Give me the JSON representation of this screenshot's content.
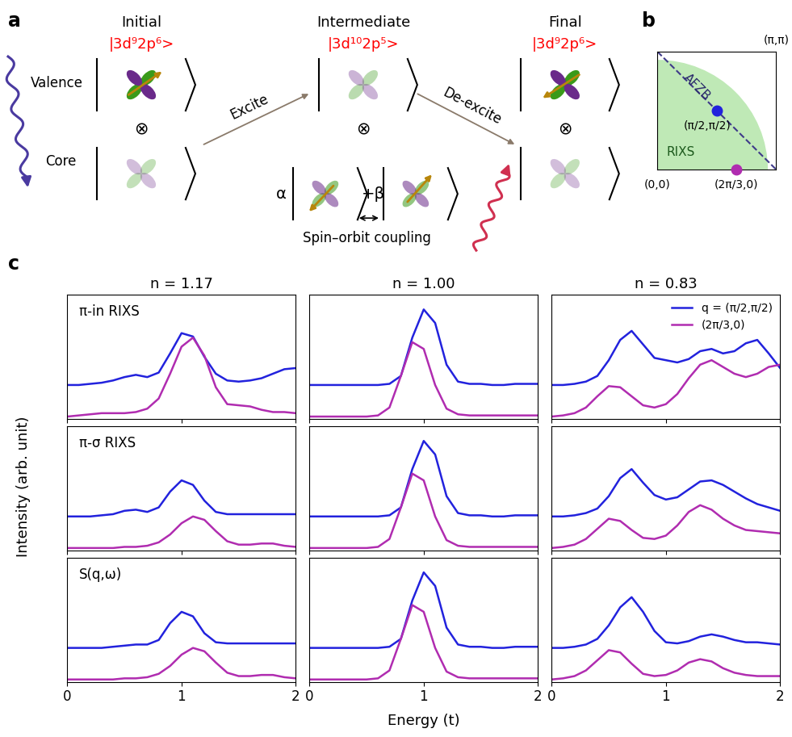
{
  "panel_labels": [
    "a",
    "b",
    "c"
  ],
  "diagram_a": {
    "stages": [
      "Initial",
      "Intermediate",
      "Final"
    ],
    "kets": [
      "|3d⁹2p⁶>",
      "|3d¹⁰2p⁵>",
      "|3d⁹2p⁶>"
    ],
    "rows": [
      "Valence",
      "Core"
    ],
    "product": "⊗",
    "transitions": [
      "Excite",
      "De-excite"
    ],
    "coefficients": [
      "α",
      "+β"
    ],
    "coupling": "Spin–orbit coupling"
  },
  "diagram_b": {
    "corners": [
      "(π,π)",
      "(0,0)"
    ],
    "points": [
      "(π/2,π/2)",
      "(2π/3,0)"
    ],
    "regions": [
      "AFZB",
      "RIXS"
    ]
  },
  "x_label": "Energy (t)",
  "y_label": "Intensity (arb. unit)",
  "chart_data": [
    {
      "type": "line",
      "title": "n = 1.17",
      "annotation": "π-in RIXS",
      "x": [
        0,
        0.1,
        0.2,
        0.3,
        0.4,
        0.5,
        0.6,
        0.7,
        0.8,
        0.9,
        1.0,
        1.1,
        1.2,
        1.3,
        1.4,
        1.5,
        1.6,
        1.7,
        1.8,
        1.9,
        2.0
      ],
      "series": [
        {
          "color": "#2222dd",
          "values": [
            0.3,
            0.3,
            0.31,
            0.32,
            0.34,
            0.37,
            0.39,
            0.37,
            0.41,
            0.58,
            0.76,
            0.73,
            0.55,
            0.4,
            0.34,
            0.33,
            0.34,
            0.36,
            0.4,
            0.44,
            0.45
          ]
        },
        {
          "color": "#b02cb0",
          "values": [
            0.02,
            0.03,
            0.04,
            0.05,
            0.05,
            0.05,
            0.06,
            0.09,
            0.18,
            0.4,
            0.64,
            0.72,
            0.56,
            0.28,
            0.13,
            0.12,
            0.11,
            0.08,
            0.06,
            0.06,
            0.05
          ]
        }
      ],
      "xlim": [
        0,
        2
      ],
      "xticks": [
        0,
        1,
        2
      ],
      "ylim": [
        0,
        1.1
      ],
      "yticks": [],
      "tick_labels": false
    },
    {
      "type": "line",
      "title": "n = 1.00",
      "x": [
        0,
        0.1,
        0.2,
        0.3,
        0.4,
        0.5,
        0.6,
        0.7,
        0.8,
        0.9,
        1.0,
        1.1,
        1.2,
        1.3,
        1.4,
        1.5,
        1.6,
        1.7,
        1.8,
        1.9,
        2.0
      ],
      "series": [
        {
          "color": "#2222dd",
          "values": [
            0.3,
            0.3,
            0.3,
            0.3,
            0.3,
            0.3,
            0.3,
            0.31,
            0.38,
            0.72,
            0.97,
            0.85,
            0.48,
            0.33,
            0.31,
            0.31,
            0.3,
            0.3,
            0.31,
            0.31,
            0.31
          ]
        },
        {
          "color": "#b02cb0",
          "values": [
            0.02,
            0.02,
            0.02,
            0.02,
            0.02,
            0.02,
            0.03,
            0.1,
            0.38,
            0.68,
            0.62,
            0.3,
            0.09,
            0.04,
            0.03,
            0.03,
            0.03,
            0.03,
            0.03,
            0.03,
            0.03
          ]
        }
      ],
      "xlim": [
        0,
        2
      ],
      "xticks": [
        0,
        1,
        2
      ],
      "ylim": [
        0,
        1.1
      ],
      "yticks": [],
      "tick_labels": false
    },
    {
      "type": "line",
      "title": "n = 0.83",
      "legend": "upper right",
      "x": [
        0,
        0.1,
        0.2,
        0.3,
        0.4,
        0.5,
        0.6,
        0.7,
        0.8,
        0.9,
        1.0,
        1.1,
        1.2,
        1.3,
        1.4,
        1.5,
        1.6,
        1.7,
        1.8,
        1.9,
        2.0
      ],
      "series": [
        {
          "name": "q = (π/2,π/2)",
          "color": "#2222dd",
          "values": [
            0.3,
            0.3,
            0.31,
            0.33,
            0.38,
            0.52,
            0.7,
            0.78,
            0.66,
            0.54,
            0.52,
            0.5,
            0.53,
            0.6,
            0.62,
            0.58,
            0.6,
            0.67,
            0.7,
            0.58,
            0.45
          ]
        },
        {
          "name": "(2π/3,0)",
          "color": "#b02cb0",
          "values": [
            0.02,
            0.03,
            0.05,
            0.1,
            0.2,
            0.29,
            0.28,
            0.2,
            0.12,
            0.1,
            0.13,
            0.22,
            0.36,
            0.48,
            0.52,
            0.46,
            0.4,
            0.37,
            0.4,
            0.46,
            0.48
          ]
        }
      ],
      "xlim": [
        0,
        2
      ],
      "xticks": [
        0,
        1,
        2
      ],
      "ylim": [
        0,
        1.1
      ],
      "yticks": [],
      "tick_labels": false
    },
    {
      "type": "line",
      "annotation": "π-σ RIXS",
      "x": [
        0,
        0.1,
        0.2,
        0.3,
        0.4,
        0.5,
        0.6,
        0.7,
        0.8,
        0.9,
        1.0,
        1.1,
        1.2,
        1.3,
        1.4,
        1.5,
        1.6,
        1.7,
        1.8,
        1.9,
        2.0
      ],
      "series": [
        {
          "color": "#2222dd",
          "values": [
            0.3,
            0.3,
            0.3,
            0.31,
            0.32,
            0.35,
            0.36,
            0.34,
            0.38,
            0.52,
            0.62,
            0.58,
            0.44,
            0.34,
            0.32,
            0.32,
            0.32,
            0.32,
            0.32,
            0.32,
            0.32
          ]
        },
        {
          "color": "#b02cb0",
          "values": [
            0.02,
            0.02,
            0.02,
            0.02,
            0.02,
            0.03,
            0.03,
            0.04,
            0.07,
            0.14,
            0.24,
            0.3,
            0.27,
            0.17,
            0.08,
            0.05,
            0.05,
            0.06,
            0.06,
            0.04,
            0.03
          ]
        }
      ],
      "xlim": [
        0,
        2
      ],
      "xticks": [
        0,
        1,
        2
      ],
      "ylim": [
        0,
        1.1
      ],
      "yticks": [],
      "tick_labels": false
    },
    {
      "type": "line",
      "x": [
        0,
        0.1,
        0.2,
        0.3,
        0.4,
        0.5,
        0.6,
        0.7,
        0.8,
        0.9,
        1.0,
        1.1,
        1.2,
        1.3,
        1.4,
        1.5,
        1.6,
        1.7,
        1.8,
        1.9,
        2.0
      ],
      "series": [
        {
          "color": "#2222dd",
          "values": [
            0.3,
            0.3,
            0.3,
            0.3,
            0.3,
            0.3,
            0.3,
            0.31,
            0.38,
            0.72,
            0.97,
            0.85,
            0.48,
            0.33,
            0.31,
            0.31,
            0.3,
            0.3,
            0.31,
            0.31,
            0.31
          ]
        },
        {
          "color": "#b02cb0",
          "values": [
            0.02,
            0.02,
            0.02,
            0.02,
            0.02,
            0.02,
            0.03,
            0.1,
            0.38,
            0.68,
            0.62,
            0.3,
            0.09,
            0.04,
            0.03,
            0.03,
            0.03,
            0.03,
            0.03,
            0.03,
            0.03
          ]
        }
      ],
      "xlim": [
        0,
        2
      ],
      "xticks": [
        0,
        1,
        2
      ],
      "ylim": [
        0,
        1.1
      ],
      "yticks": [],
      "tick_labels": false
    },
    {
      "type": "line",
      "x": [
        0,
        0.1,
        0.2,
        0.3,
        0.4,
        0.5,
        0.6,
        0.7,
        0.8,
        0.9,
        1.0,
        1.1,
        1.2,
        1.3,
        1.4,
        1.5,
        1.6,
        1.7,
        1.8,
        1.9,
        2.0
      ],
      "series": [
        {
          "color": "#2222dd",
          "values": [
            0.3,
            0.3,
            0.31,
            0.33,
            0.37,
            0.48,
            0.64,
            0.72,
            0.6,
            0.49,
            0.45,
            0.47,
            0.54,
            0.61,
            0.62,
            0.58,
            0.52,
            0.46,
            0.41,
            0.38,
            0.35
          ]
        },
        {
          "color": "#b02cb0",
          "values": [
            0.02,
            0.03,
            0.05,
            0.1,
            0.19,
            0.28,
            0.26,
            0.18,
            0.11,
            0.1,
            0.13,
            0.22,
            0.34,
            0.4,
            0.36,
            0.28,
            0.22,
            0.18,
            0.17,
            0.16,
            0.15
          ]
        }
      ],
      "xlim": [
        0,
        2
      ],
      "xticks": [
        0,
        1,
        2
      ],
      "ylim": [
        0,
        1.1
      ],
      "yticks": [],
      "tick_labels": false
    },
    {
      "type": "line",
      "annotation": "S(q,ω)",
      "x": [
        0,
        0.1,
        0.2,
        0.3,
        0.4,
        0.5,
        0.6,
        0.7,
        0.8,
        0.9,
        1.0,
        1.1,
        1.2,
        1.3,
        1.4,
        1.5,
        1.6,
        1.7,
        1.8,
        1.9,
        2.0
      ],
      "series": [
        {
          "color": "#2222dd",
          "values": [
            0.3,
            0.3,
            0.3,
            0.3,
            0.31,
            0.32,
            0.33,
            0.33,
            0.37,
            0.52,
            0.62,
            0.58,
            0.43,
            0.35,
            0.34,
            0.34,
            0.34,
            0.34,
            0.34,
            0.34,
            0.34
          ]
        },
        {
          "color": "#b02cb0",
          "values": [
            0.02,
            0.02,
            0.02,
            0.02,
            0.02,
            0.03,
            0.03,
            0.04,
            0.07,
            0.14,
            0.24,
            0.3,
            0.27,
            0.17,
            0.08,
            0.05,
            0.05,
            0.06,
            0.06,
            0.04,
            0.03
          ]
        }
      ],
      "xlim": [
        0,
        2
      ],
      "xticks": [
        0,
        1,
        2
      ],
      "ylim": [
        0,
        1.1
      ],
      "yticks": [],
      "tick_labels": "x"
    },
    {
      "type": "line",
      "x": [
        0,
        0.1,
        0.2,
        0.3,
        0.4,
        0.5,
        0.6,
        0.7,
        0.8,
        0.9,
        1.0,
        1.1,
        1.2,
        1.3,
        1.4,
        1.5,
        1.6,
        1.7,
        1.8,
        1.9,
        2.0
      ],
      "series": [
        {
          "color": "#2222dd",
          "values": [
            0.3,
            0.3,
            0.3,
            0.3,
            0.3,
            0.3,
            0.3,
            0.31,
            0.38,
            0.72,
            0.97,
            0.85,
            0.48,
            0.33,
            0.31,
            0.31,
            0.3,
            0.3,
            0.31,
            0.31,
            0.31
          ]
        },
        {
          "color": "#b02cb0",
          "values": [
            0.02,
            0.02,
            0.02,
            0.02,
            0.02,
            0.02,
            0.03,
            0.1,
            0.38,
            0.68,
            0.62,
            0.3,
            0.09,
            0.04,
            0.03,
            0.03,
            0.03,
            0.03,
            0.03,
            0.03,
            0.03
          ]
        }
      ],
      "xlim": [
        0,
        2
      ],
      "xticks": [
        0,
        1,
        2
      ],
      "ylim": [
        0,
        1.1
      ],
      "yticks": [],
      "tick_labels": "x"
    },
    {
      "type": "line",
      "x": [
        0,
        0.1,
        0.2,
        0.3,
        0.4,
        0.5,
        0.6,
        0.7,
        0.8,
        0.9,
        1.0,
        1.1,
        1.2,
        1.3,
        1.4,
        1.5,
        1.6,
        1.7,
        1.8,
        1.9,
        2.0
      ],
      "series": [
        {
          "color": "#2222dd",
          "values": [
            0.3,
            0.3,
            0.31,
            0.33,
            0.38,
            0.5,
            0.66,
            0.75,
            0.62,
            0.45,
            0.35,
            0.34,
            0.36,
            0.4,
            0.42,
            0.4,
            0.37,
            0.35,
            0.35,
            0.34,
            0.33
          ]
        },
        {
          "color": "#b02cb0",
          "values": [
            0.02,
            0.03,
            0.05,
            0.1,
            0.19,
            0.28,
            0.26,
            0.16,
            0.07,
            0.05,
            0.06,
            0.1,
            0.17,
            0.2,
            0.18,
            0.12,
            0.08,
            0.06,
            0.05,
            0.05,
            0.05
          ]
        }
      ],
      "xlim": [
        0,
        2
      ],
      "xticks": [
        0,
        1,
        2
      ],
      "ylim": [
        0,
        1.1
      ],
      "yticks": [],
      "tick_labels": "x"
    }
  ]
}
